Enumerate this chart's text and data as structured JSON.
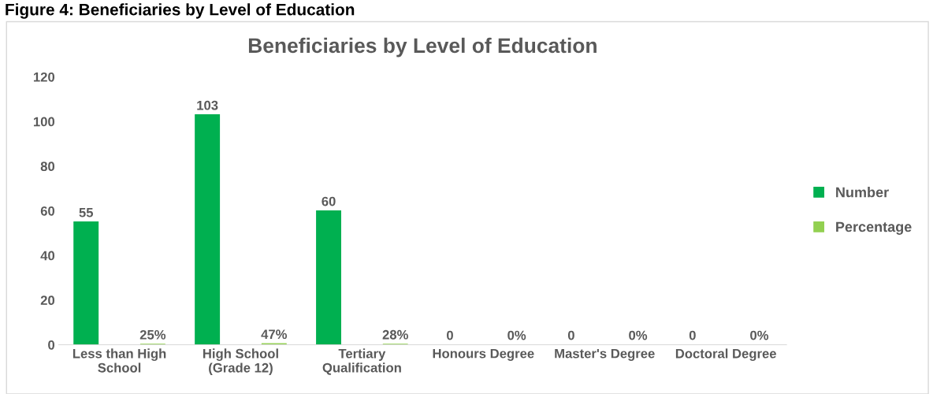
{
  "chart_data": {
    "type": "bar",
    "title": "Beneficiaries by Level of Education",
    "annotations": [
      "Figure 4: Beneficiaries by Level of Education"
    ],
    "categories": [
      "Less than High\nSchool",
      "High School\n(Grade 12)",
      "Tertiary\nQualification",
      "Honours Degree",
      "Master's Degree",
      "Doctoral Degree"
    ],
    "series": [
      {
        "name": "Number",
        "color": "#00b050",
        "values": [
          55,
          103,
          60,
          0,
          0,
          0
        ],
        "value_labels": [
          "55",
          "103",
          "60",
          "0",
          "0",
          "0"
        ]
      },
      {
        "name": "Percentage",
        "color": "#92d050",
        "values": [
          0.25,
          0.47,
          0.28,
          0,
          0,
          0
        ],
        "value_labels": [
          "25%",
          "47%",
          "28%",
          "0%",
          "0%",
          "0%"
        ]
      }
    ],
    "ylim": [
      0,
      120
    ],
    "yticks": [
      0,
      20,
      40,
      60,
      80,
      100,
      120
    ],
    "grid": false,
    "legend": "right"
  }
}
